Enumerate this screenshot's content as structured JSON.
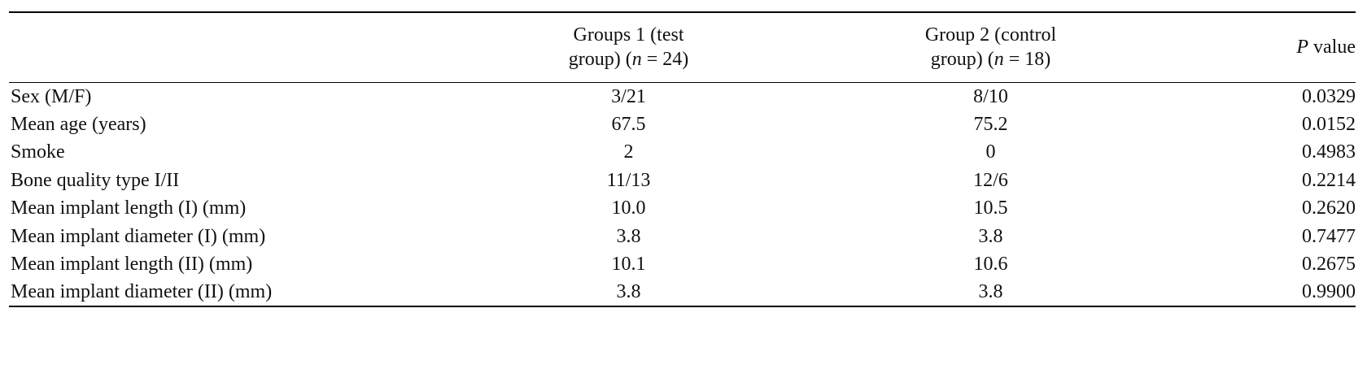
{
  "table": {
    "columns": [
      {
        "parts": [
          {
            "text": "Groups 1 (test group) ("
          },
          {
            "text": "n",
            "italic": true
          },
          {
            "text": " = 24)"
          }
        ]
      },
      {
        "parts": [
          {
            "text": "Group 2 (control group) ("
          },
          {
            "text": "n",
            "italic": true
          },
          {
            "text": " = 18)"
          }
        ]
      },
      {
        "parts": [
          {
            "text": "P",
            "italic": true
          },
          {
            "text": " value"
          }
        ]
      }
    ],
    "rows": [
      [
        "Sex (M/F)",
        "3/21",
        "8/10",
        "0.0329"
      ],
      [
        "Mean age (years)",
        "67.5",
        "75.2",
        "0.0152"
      ],
      [
        "Smoke",
        "2",
        "0",
        "0.4983"
      ],
      [
        "Bone quality type I/II",
        "11/13",
        "12/6",
        "0.2214"
      ],
      [
        "Mean implant length (I) (mm)",
        "10.0",
        "10.5",
        "0.2620"
      ],
      [
        "Mean implant diameter (I) (mm)",
        "3.8",
        "3.8",
        "0.7477"
      ],
      [
        "Mean implant length (II) (mm)",
        "10.1",
        "10.6",
        "0.2675"
      ],
      [
        "Mean implant diameter (II) (mm)",
        "3.8",
        "3.8",
        "0.9900"
      ]
    ]
  }
}
